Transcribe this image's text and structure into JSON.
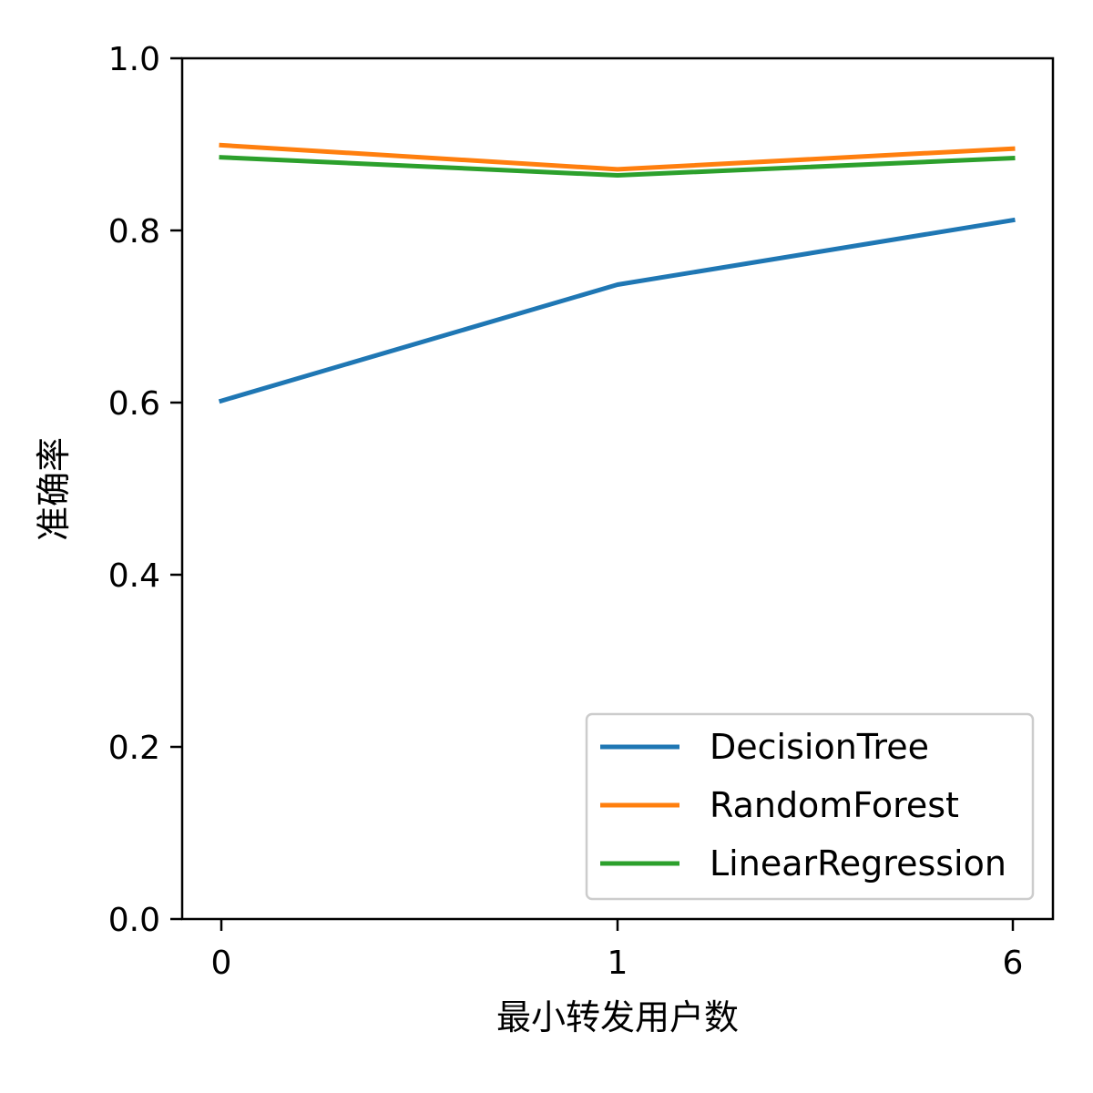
{
  "chart_data": {
    "type": "line",
    "title": "",
    "xlabel": "最小转发用户数",
    "ylabel": "准确率",
    "categories": [
      "0",
      "1",
      "6"
    ],
    "ylim": [
      0.0,
      1.0
    ],
    "yticks": [
      "0.0",
      "0.2",
      "0.4",
      "0.6",
      "0.8",
      "1.0"
    ],
    "ytick_values": [
      0.0,
      0.2,
      0.4,
      0.6,
      0.8,
      1.0
    ],
    "grid": false,
    "legend_position": "bottom-right",
    "series": [
      {
        "name": "DecisionTree",
        "values": [
          0.602,
          0.737,
          0.812
        ],
        "color": "#1f77b4"
      },
      {
        "name": "RandomForest",
        "values": [
          0.899,
          0.871,
          0.895
        ],
        "color": "#ff7f0e"
      },
      {
        "name": "LinearRegression",
        "values": [
          0.885,
          0.864,
          0.884
        ],
        "color": "#2ca02c"
      }
    ]
  }
}
